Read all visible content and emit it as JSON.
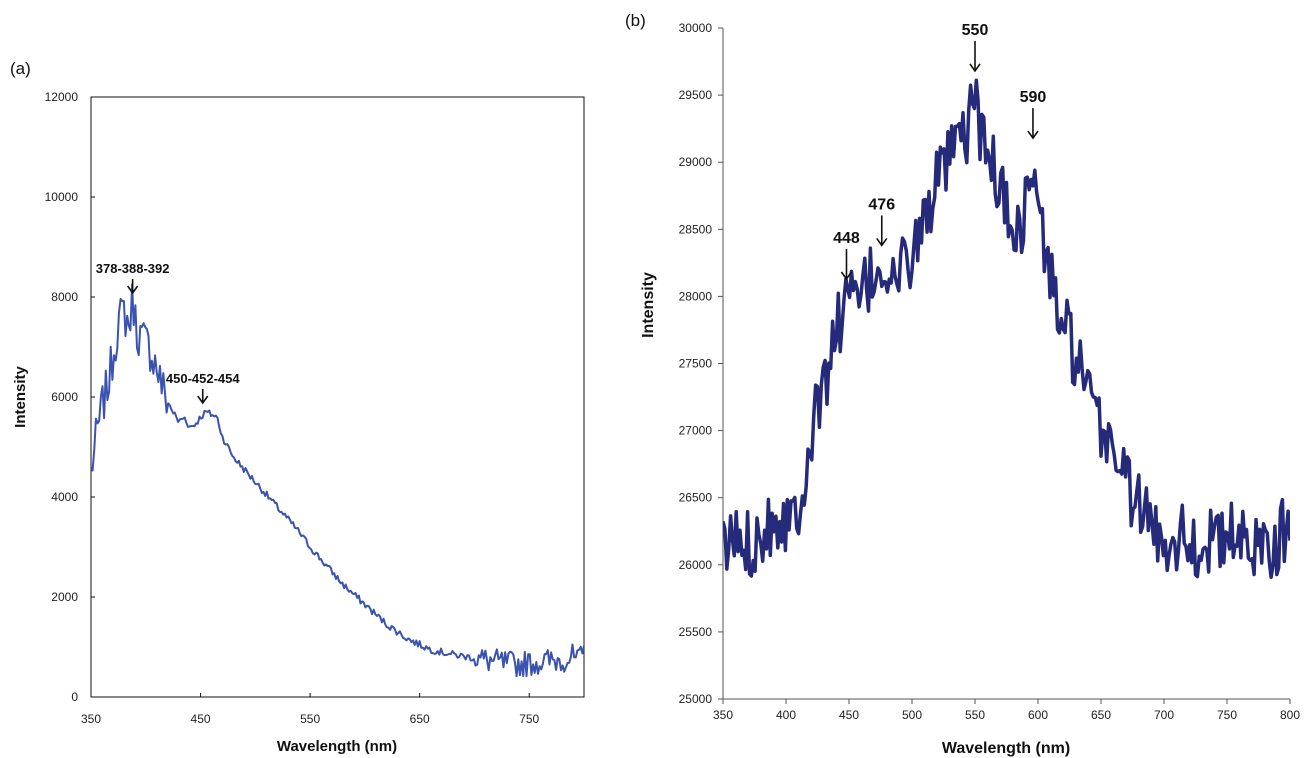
{
  "chart_data": [
    {
      "type": "line",
      "panel_label": "(a)",
      "xlabel": "Wavelength (nm)",
      "ylabel": "Intensity",
      "xlim": [
        350,
        800
      ],
      "ylim": [
        0,
        12000
      ],
      "x_ticks": [
        350,
        450,
        550,
        650,
        750
      ],
      "y_ticks": [
        0,
        2000,
        4000,
        6000,
        8000,
        10000,
        12000
      ],
      "grid": false,
      "color": "#3a52b0",
      "series": [
        {
          "x": [
            350,
            355,
            360,
            365,
            370,
            375,
            380,
            385,
            388,
            392,
            396,
            400,
            405,
            410,
            415,
            420,
            425,
            430,
            435,
            440,
            445,
            450,
            455,
            460,
            465,
            470,
            480,
            490,
            500,
            510,
            520,
            530,
            540,
            550,
            560,
            570,
            580,
            590,
            600,
            620,
            640,
            660,
            680,
            700,
            720,
            740,
            760,
            780,
            790,
            795,
            800
          ],
          "y": [
            4500,
            5200,
            5800,
            6200,
            6800,
            7500,
            7700,
            7400,
            8000,
            7300,
            7200,
            7100,
            6900,
            6600,
            6200,
            5900,
            5700,
            5500,
            5600,
            5400,
            5450,
            5600,
            5700,
            5650,
            5600,
            5200,
            4800,
            4550,
            4300,
            4050,
            3800,
            3550,
            3300,
            3000,
            2750,
            2500,
            2250,
            2050,
            1850,
            1450,
            1150,
            950,
            850,
            780,
            700,
            650,
            700,
            750,
            800,
            700,
            900
          ]
        }
      ],
      "annotations": [
        {
          "text": "378-388-392",
          "x": 388,
          "y": 8000
        },
        {
          "text": "450-452-454",
          "x": 452,
          "y": 5800
        }
      ]
    },
    {
      "type": "line",
      "panel_label": "(b)",
      "xlabel": "Wavelength (nm)",
      "ylabel": "Intensity",
      "xlim": [
        350,
        800
      ],
      "ylim": [
        25000,
        30000
      ],
      "x_ticks": [
        350,
        400,
        450,
        500,
        550,
        600,
        650,
        700,
        750,
        800
      ],
      "y_ticks": [
        25000,
        25500,
        26000,
        26500,
        27000,
        27500,
        28000,
        28500,
        29000,
        29500,
        30000
      ],
      "grid": false,
      "color": "#252b7a",
      "series": [
        {
          "x": [
            350,
            360,
            370,
            380,
            390,
            400,
            410,
            420,
            430,
            440,
            448,
            456,
            466,
            476,
            486,
            496,
            506,
            516,
            526,
            536,
            544,
            550,
            556,
            566,
            576,
            586,
            596,
            606,
            616,
            626,
            636,
            646,
            656,
            666,
            676,
            686,
            696,
            706,
            716,
            726,
            736,
            746,
            756,
            766,
            776,
            786,
            796,
            800
          ],
          "y": [
            26100,
            26200,
            26150,
            26250,
            26350,
            26350,
            26450,
            26950,
            27350,
            27750,
            28000,
            27950,
            28100,
            28250,
            28100,
            28250,
            28450,
            28750,
            28950,
            29100,
            29200,
            29600,
            29100,
            28950,
            28600,
            28500,
            28950,
            28300,
            27900,
            27650,
            27350,
            27050,
            26950,
            26750,
            26500,
            26350,
            26200,
            26200,
            26250,
            26100,
            26200,
            26150,
            26250,
            26100,
            26200,
            26150,
            26250,
            26300
          ]
        }
      ],
      "annotations": [
        {
          "text": "448",
          "x": 448,
          "y": 28100
        },
        {
          "text": "476",
          "x": 476,
          "y": 28350
        },
        {
          "text": "550",
          "x": 550,
          "y": 29650
        },
        {
          "text": "590",
          "x": 596,
          "y": 29150
        }
      ]
    }
  ]
}
